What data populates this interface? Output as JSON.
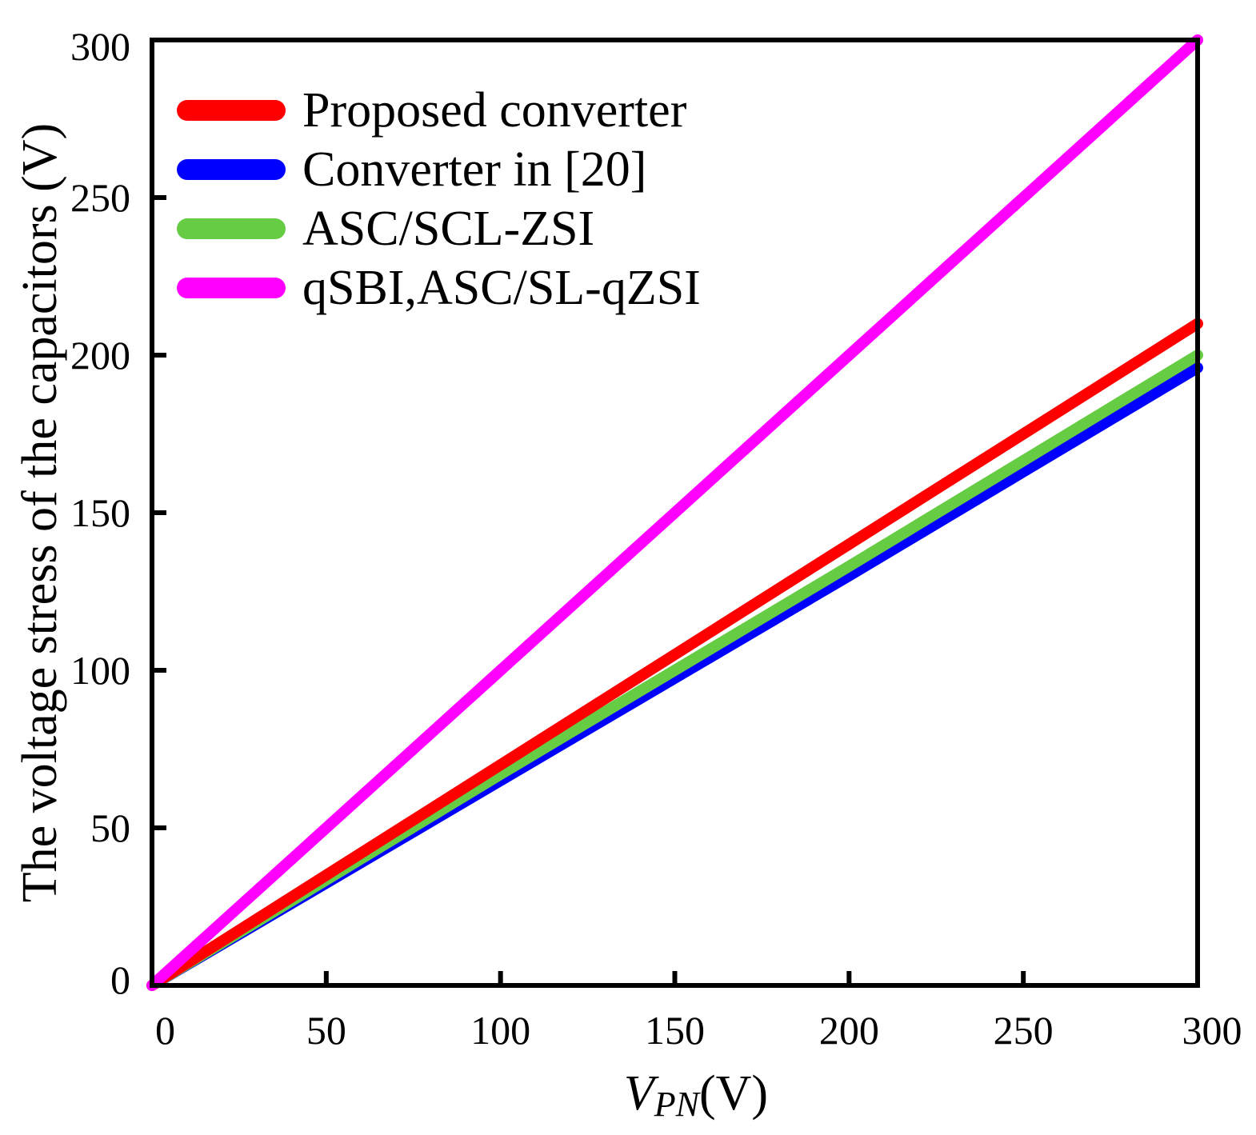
{
  "chart_data": {
    "type": "line",
    "title": "",
    "xlabel_main": "V",
    "xlabel_sub": "PN",
    "xlabel_unit": "(V)",
    "ylabel": "The voltage stress of the capacitors (V)",
    "xlim": [
      0,
      300
    ],
    "ylim": [
      0,
      300
    ],
    "x_ticks": [
      0,
      50,
      100,
      150,
      200,
      250,
      300
    ],
    "y_ticks": [
      0,
      50,
      100,
      150,
      200,
      250,
      300
    ],
    "grid": false,
    "legend_position": "top-left",
    "series": [
      {
        "name": "Proposed converter",
        "color": "#ff0000",
        "x": [
          0,
          100,
          200,
          300
        ],
        "y": [
          0,
          70,
          140,
          210
        ]
      },
      {
        "name": "Converter in [20]",
        "color": "#0000ff",
        "x": [
          0,
          100,
          200,
          300
        ],
        "y": [
          0,
          65,
          130,
          196
        ]
      },
      {
        "name": "ASC/SCL-ZSI",
        "color": "#66cc44",
        "x": [
          0,
          100,
          200,
          300
        ],
        "y": [
          0,
          67,
          133,
          200
        ]
      },
      {
        "name": "qSBI,ASC/SL-qZSI",
        "color": "#ff00ff",
        "x": [
          0,
          100,
          200,
          300
        ],
        "y": [
          0,
          100,
          200,
          300
        ]
      }
    ]
  }
}
